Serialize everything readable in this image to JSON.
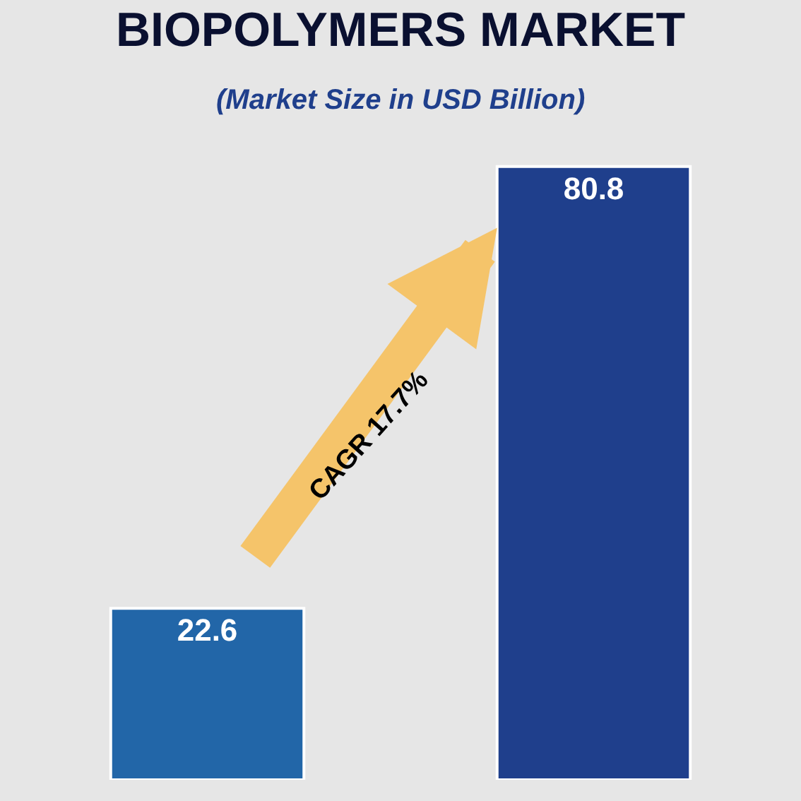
{
  "chart_data": {
    "type": "bar",
    "title": "BIOPOLYMERS MARKET",
    "subtitle": "(Market Size in USD Billion)",
    "categories": [
      null,
      null
    ],
    "values": [
      22.6,
      80.8
    ],
    "colors": [
      "#2266a8",
      "#1f3f8c"
    ],
    "data_labels": true,
    "tick_labels": false,
    "annotations": [
      "CAGR 17.7%"
    ],
    "grid": false
  }
}
